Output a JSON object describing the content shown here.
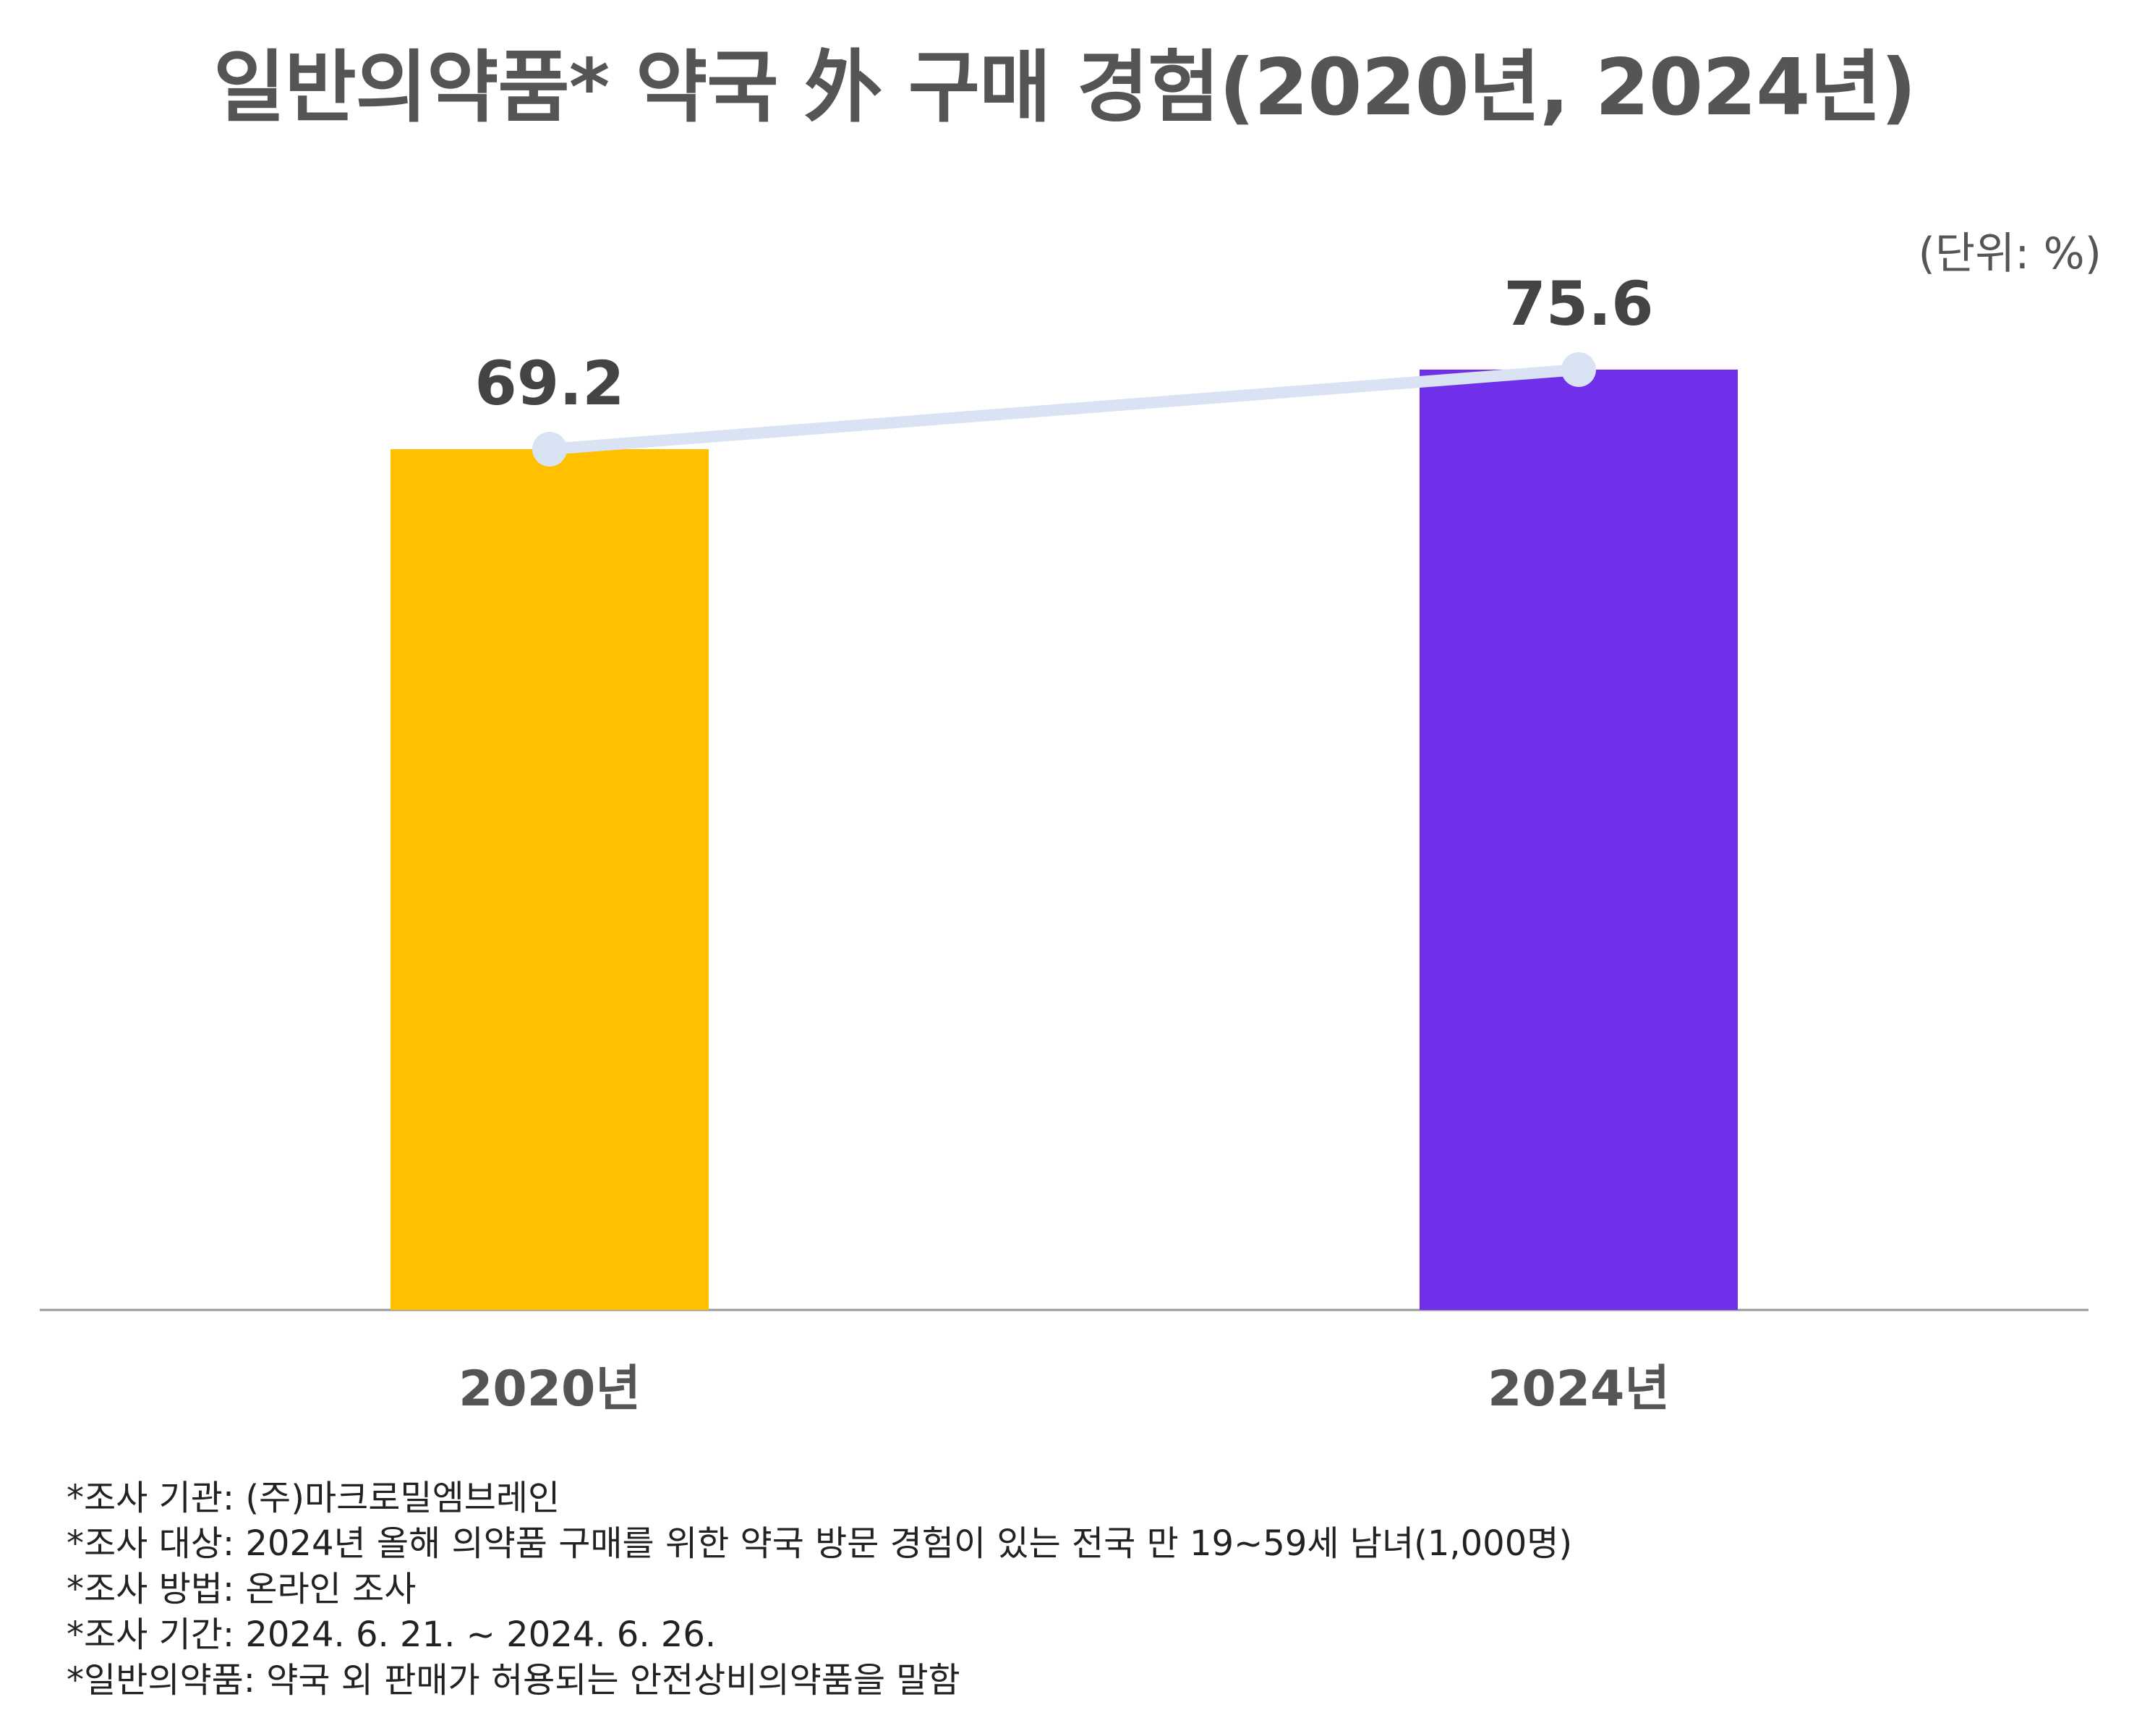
{
  "title": "일반의약품* 약국 外 구매 경험(2020년, 2024년)",
  "unit_label": "(단위: %)",
  "chart_data": {
    "type": "bar",
    "categories": [
      "2020년",
      "2024년"
    ],
    "values": [
      69.2,
      75.6
    ],
    "value_labels": [
      "69.2",
      "75.6"
    ],
    "bar_colors": [
      "#FFC000",
      "#7030EA"
    ],
    "trend_line": true,
    "trend_line_color": "#DAE3F3",
    "ylim": [
      0,
      100
    ],
    "grid": false,
    "legend": "none"
  },
  "notes": [
    "*조사 기관: (주)마크로밀엠브레인",
    "*조사 대상: 2024년 올해 의약품 구매를 위한 약국 방문 경험이 있는 전국 만 19~59세 남녀(1,000명)",
    "*조사 방법: 온라인 조사",
    "*조사 기간: 2024. 6. 21. ~ 2024. 6. 26.",
    "*일반의약품: 약국 외 판매가 허용되는 안전상비의약품을 말함"
  ]
}
